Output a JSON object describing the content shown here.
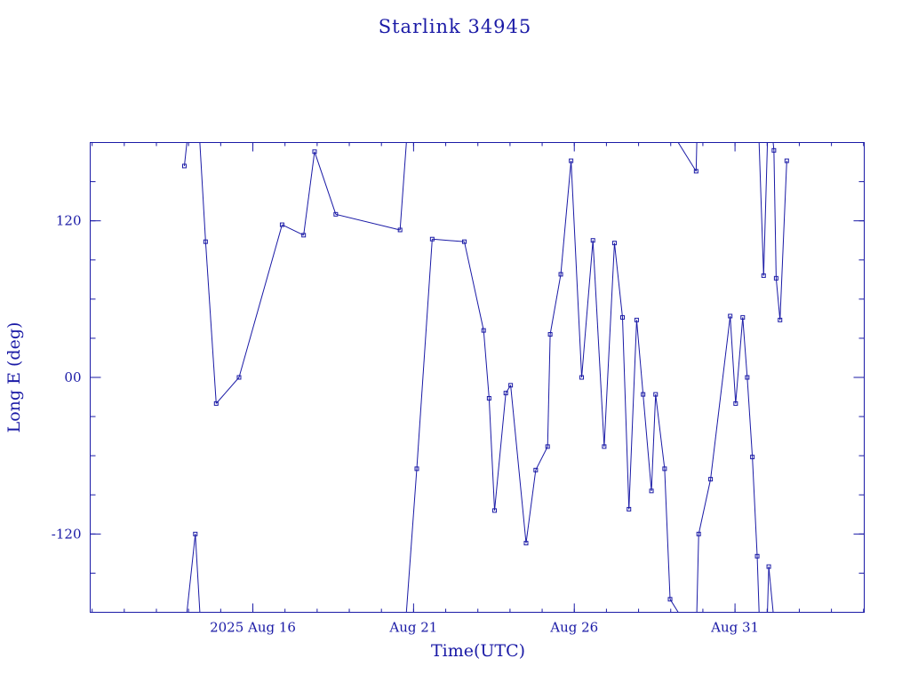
{
  "colors": {
    "ink": "#1a1aa6",
    "background": "#ffffff"
  },
  "chart_data": {
    "type": "line",
    "title": "Starlink 34945",
    "xlabel": "Time(UTC)",
    "ylabel": "Long E (deg)",
    "x_unit": "days",
    "xlim": [
      10.94,
      35.02
    ],
    "ylim": [
      -180,
      180
    ],
    "wrap_longitude": true,
    "grid": false,
    "marker": "square",
    "x_ticks": [
      {
        "x": 16,
        "label": "2025 Aug 16"
      },
      {
        "x": 21,
        "label": "Aug 21"
      },
      {
        "x": 26,
        "label": "Aug 26"
      },
      {
        "x": 31,
        "label": "Aug 31"
      }
    ],
    "y_ticks": [
      {
        "y": 120,
        "label": "120"
      },
      {
        "y": 0,
        "label": "00"
      },
      {
        "y": -120,
        "label": "-120"
      }
    ],
    "series": [
      {
        "x": [
          13.87,
          14.21,
          14.53,
          14.86,
          15.57,
          16.91,
          17.58,
          17.92,
          18.58,
          20.58,
          21.1,
          21.58,
          22.58,
          23.18,
          23.35,
          23.52,
          23.87,
          24.02,
          24.5,
          24.8,
          25.17,
          25.25,
          25.58,
          25.9,
          26.23,
          26.58,
          26.93,
          27.25,
          27.5,
          27.7,
          27.94,
          28.14,
          28.4,
          28.53,
          28.81,
          28.98,
          29.79,
          29.87,
          30.24,
          30.85,
          31.02,
          31.24,
          31.38,
          31.54,
          31.69,
          31.89,
          32.05,
          32.21,
          32.28,
          32.4,
          32.61
        ],
        "y": [
          162,
          -120,
          104,
          -20,
          0,
          117,
          109,
          173,
          125,
          113,
          -70,
          106,
          104,
          36,
          -16,
          -102,
          -12,
          -6,
          -127,
          -71,
          -53,
          33,
          79,
          166,
          0,
          105,
          -53,
          103,
          46,
          -101,
          44,
          -13,
          -87,
          -13,
          -70,
          -170,
          158,
          -120,
          -78,
          47,
          -20,
          46,
          0,
          -61,
          -137,
          78,
          -145,
          174,
          76,
          44,
          166
        ]
      }
    ]
  }
}
